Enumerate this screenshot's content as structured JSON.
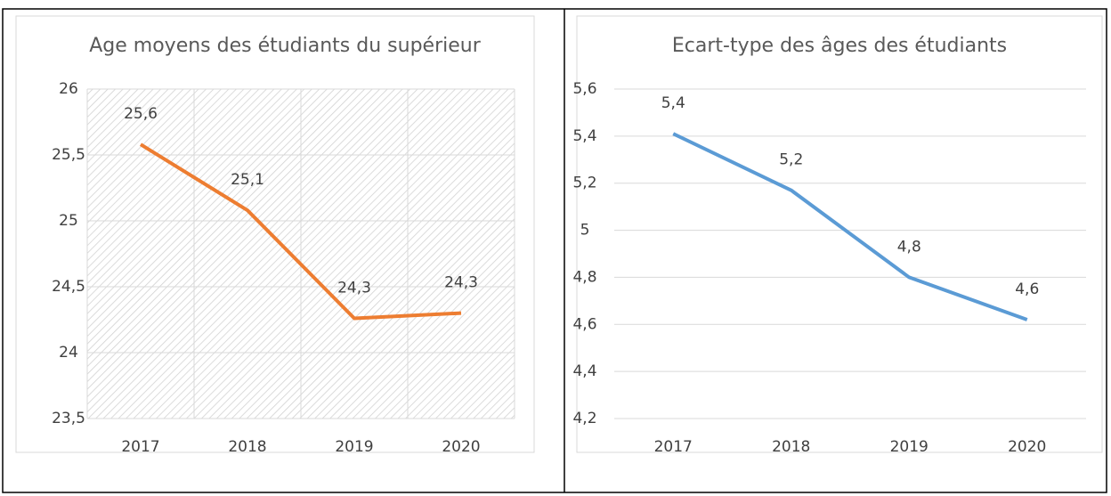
{
  "chart_data": [
    {
      "type": "line",
      "title": "Age moyens des étudiants du supérieur",
      "categories": [
        "2017",
        "2018",
        "2019",
        "2020"
      ],
      "series": [
        {
          "name": "Age moyen",
          "color": "#ed7d31",
          "values": [
            25.58,
            25.08,
            24.26,
            24.3
          ],
          "value_labels": [
            "25,6",
            "25,1",
            "24,3",
            "24,3"
          ]
        }
      ],
      "ylim": [
        23.5,
        26
      ],
      "yticks": [
        {
          "value": 23.5,
          "label": "23,5"
        },
        24,
        {
          "value": 24.5,
          "label": "24,5"
        },
        25,
        {
          "value": 25.5,
          "label": "25,5"
        },
        26
      ],
      "grid": true,
      "hatched": true
    },
    {
      "type": "line",
      "title": "Ecart-type des âges des étudiants",
      "categories": [
        "2017",
        "2018",
        "2019",
        "2020"
      ],
      "series": [
        {
          "name": "Ecart-type",
          "color": "#5b9bd5",
          "values": [
            5.41,
            5.17,
            4.8,
            4.62
          ],
          "value_labels": [
            "5,4",
            "5,2",
            "4,8",
            "4,6"
          ]
        }
      ],
      "ylim": [
        4.2,
        5.6
      ],
      "yticks": [
        {
          "value": 4.2,
          "label": "4,2"
        },
        {
          "value": 4.4,
          "label": "4,4"
        },
        {
          "value": 4.6,
          "label": "4,6"
        },
        {
          "value": 4.8,
          "label": "4,8"
        },
        5,
        {
          "value": 5.2,
          "label": "5,2"
        },
        {
          "value": 5.4,
          "label": "5,4"
        },
        {
          "value": 5.6,
          "label": "5,6"
        }
      ],
      "grid": true,
      "hatched": false
    }
  ]
}
